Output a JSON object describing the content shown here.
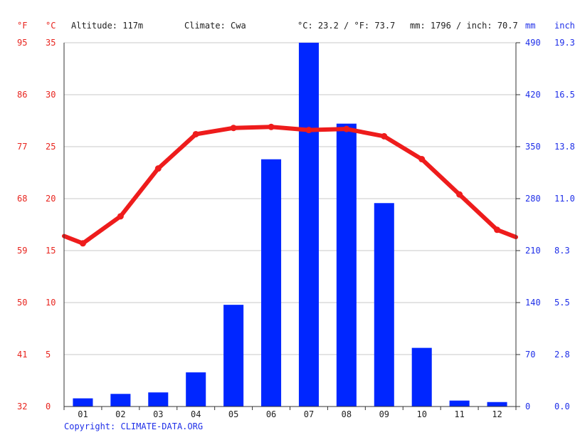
{
  "header": {
    "unit_f": "°F",
    "unit_c": "°C",
    "altitude": "Altitude: 117m",
    "climate": "Climate: Cwa",
    "temp_avg": "°C: 23.2 / °F: 73.7",
    "precip_total": "mm: 1796 / inch: 70.7",
    "unit_mm": "mm",
    "unit_inch": "inch"
  },
  "copyright": "Copyright: CLIMATE-DATA.ORG",
  "colors": {
    "temperature": "#ee1c1c",
    "precipitation": "#0026ff",
    "temp_axis": "#e8251f",
    "precip_axis": "#1f2fe8"
  },
  "chart_data": {
    "type": "bar",
    "categories": [
      "01",
      "02",
      "03",
      "04",
      "05",
      "06",
      "07",
      "08",
      "09",
      "10",
      "11",
      "12"
    ],
    "series": [
      {
        "type": "bar",
        "axis": "right",
        "values": [
          11,
          17,
          19,
          46,
          137,
          333,
          490,
          381,
          274,
          79,
          8,
          6
        ]
      },
      {
        "type": "line",
        "axis": "left",
        "values": [
          15.7,
          18.3,
          22.9,
          26.2,
          26.8,
          26.9,
          26.6,
          26.7,
          26.0,
          23.8,
          20.4,
          17.0
        ],
        "edge_values": [
          16.4,
          16.3
        ]
      }
    ],
    "y_left_ticks": [
      "0",
      "5",
      "10",
      "15",
      "20",
      "25",
      "30",
      "35"
    ],
    "y_left_f_ticks": [
      "32",
      "41",
      "50",
      "59",
      "68",
      "77",
      "86",
      "95"
    ],
    "y_right_ticks": [
      "0",
      "70",
      "140",
      "210",
      "280",
      "350",
      "420",
      "490"
    ],
    "y_right_inch_ticks": [
      "0.0",
      "2.8",
      "5.5",
      "8.3",
      "11.0",
      "13.8",
      "16.5",
      "19.3"
    ],
    "ylim_left": [
      0,
      35
    ],
    "ylim_right": [
      0,
      490
    ],
    "grid": true
  }
}
